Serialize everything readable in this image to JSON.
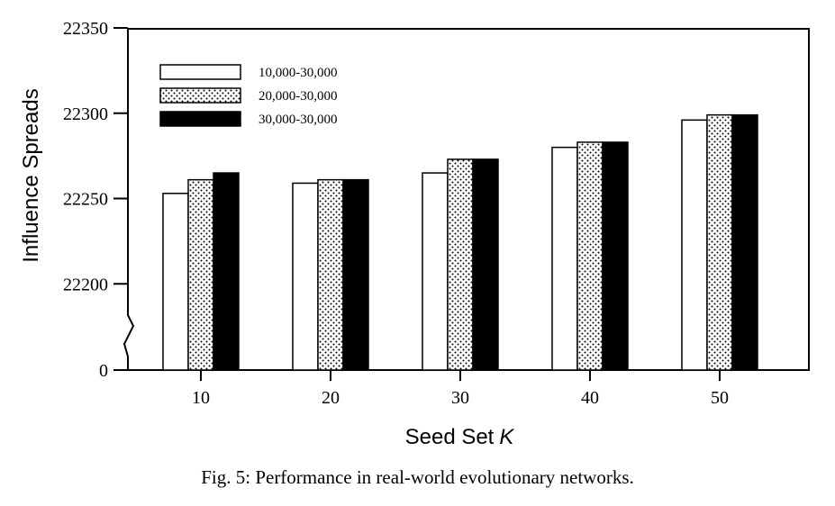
{
  "chart_data": {
    "type": "bar",
    "title": "",
    "xlabel": "Seed Set",
    "xlabel_var": "K",
    "ylabel": "Influence Spreads",
    "categories": [
      "10",
      "20",
      "30",
      "40",
      "50"
    ],
    "y_ticks": [
      "0",
      "22200",
      "22250",
      "22300",
      "22350"
    ],
    "ylim": [
      22150,
      22350
    ],
    "axis_break": true,
    "legend_position": "top-left",
    "series": [
      {
        "name": "10,000-30,000",
        "fill": "white",
        "values": [
          22253,
          22259,
          22265,
          22280,
          22296
        ]
      },
      {
        "name": "20,000-30,000",
        "fill": "dotted",
        "values": [
          22261,
          22261,
          22273,
          22283,
          22299
        ]
      },
      {
        "name": "30,000-30,000",
        "fill": "black",
        "values": [
          22265,
          22261,
          22273,
          22283,
          22299
        ]
      }
    ]
  },
  "caption": "Fig. 5: Performance in real-world evolutionary networks."
}
